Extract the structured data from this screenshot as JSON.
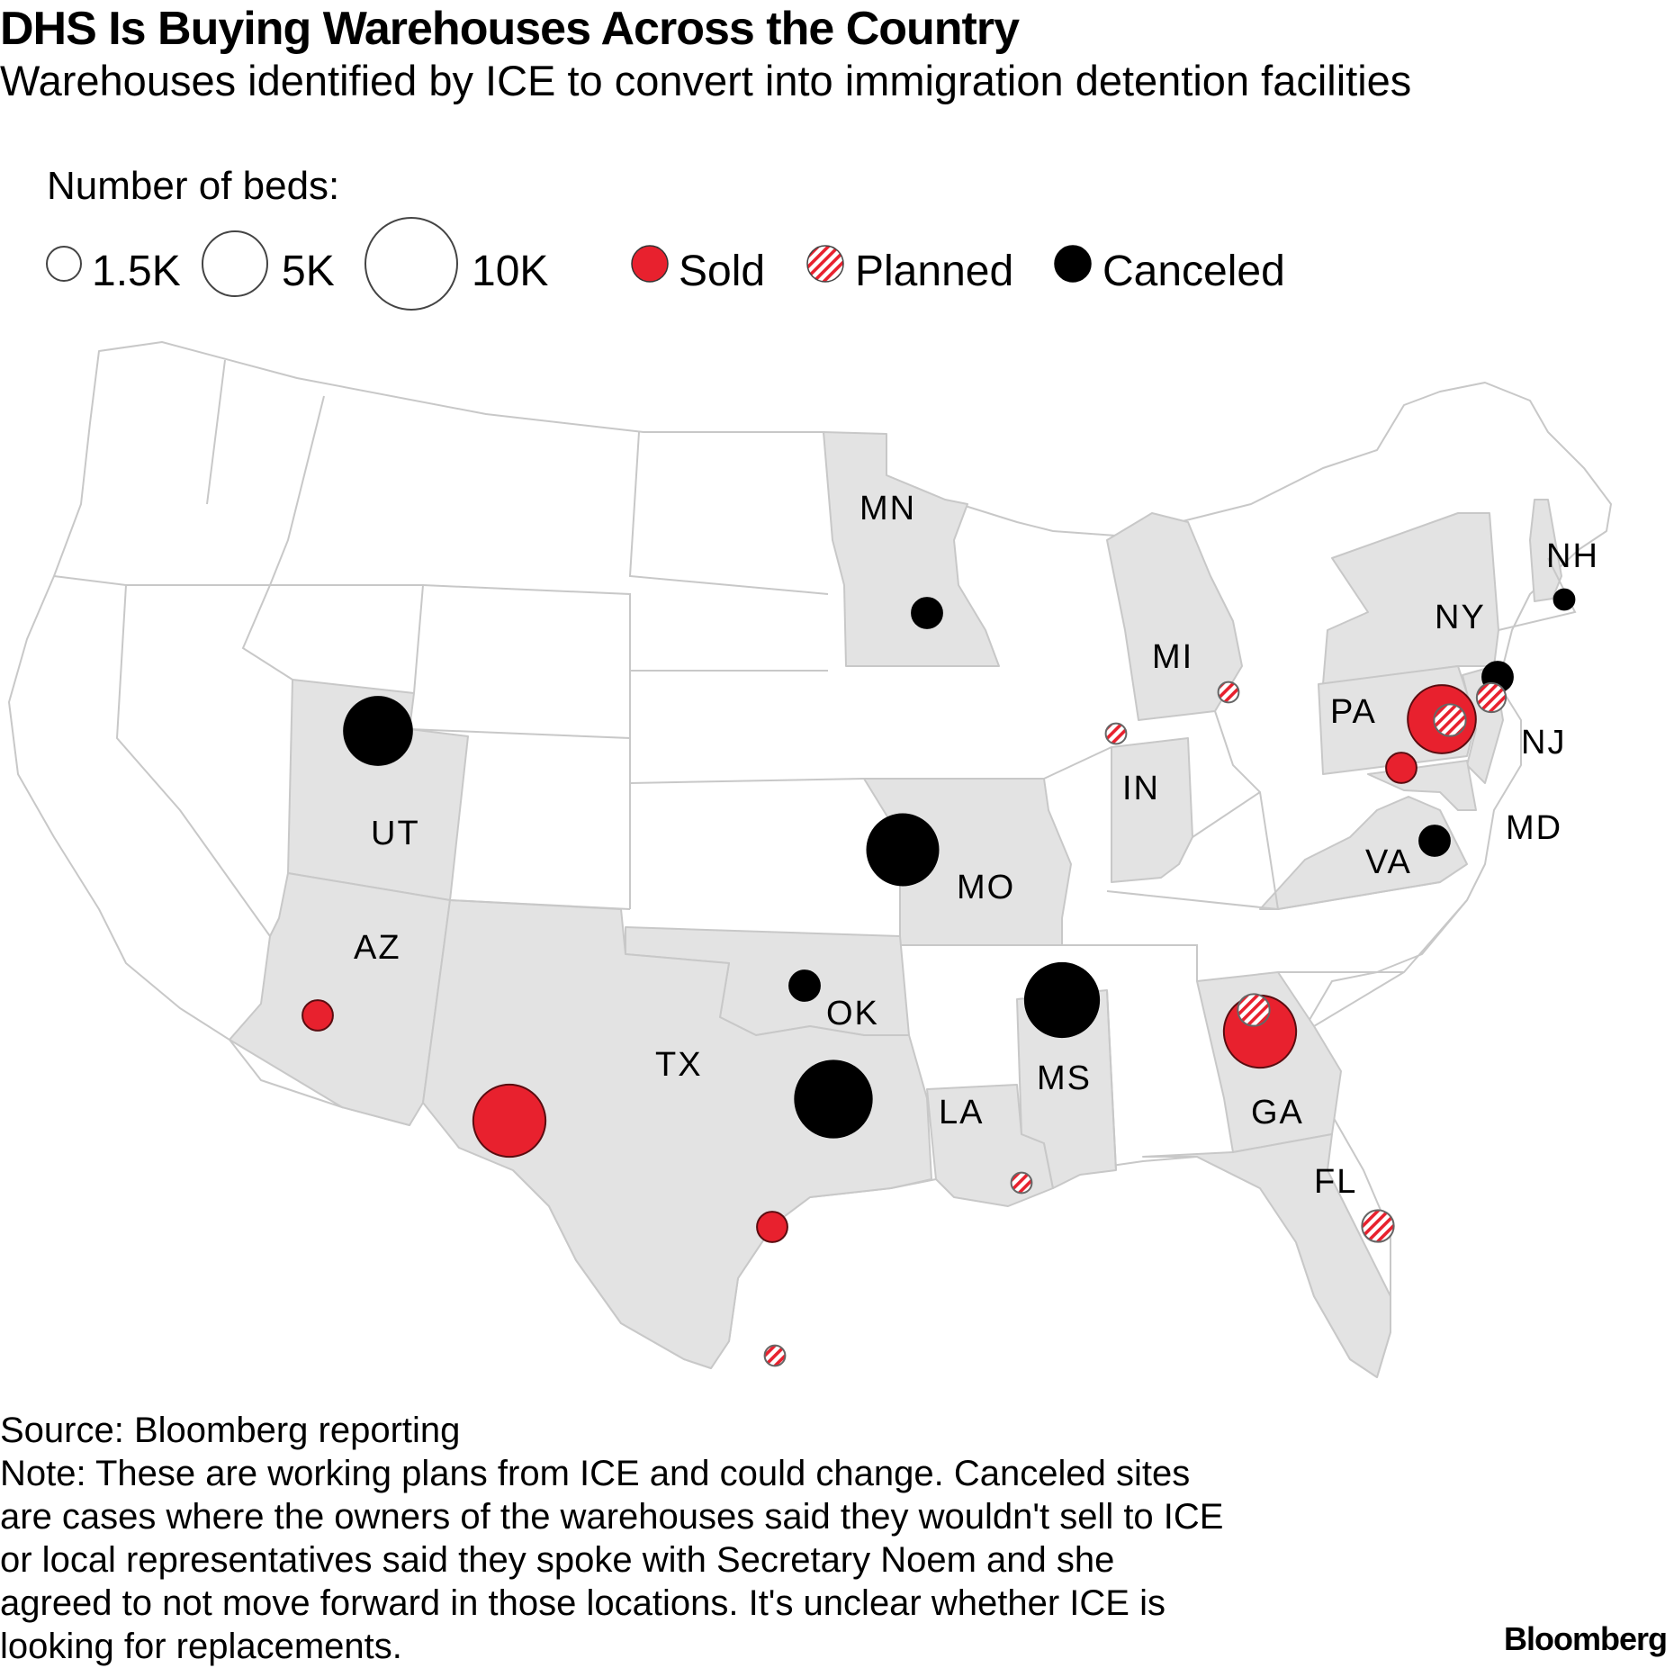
{
  "header": {
    "title": "DHS Is Buying Warehouses Across the Country",
    "subtitle": "Warehouses identified by ICE to convert into immigration detention facilities"
  },
  "legend": {
    "size_title": "Number of beds:",
    "sizes": [
      {
        "label": "1.5K",
        "beds": 1500
      },
      {
        "label": "5K",
        "beds": 5000
      },
      {
        "label": "10K",
        "beds": 10000
      }
    ],
    "statuses": [
      {
        "label": "Sold",
        "key": "sold"
      },
      {
        "label": "Planned",
        "key": "planned"
      },
      {
        "label": "Canceled",
        "key": "canceled"
      }
    ]
  },
  "colors": {
    "sold": "#e8212e",
    "planned_stripe": "#e8212e",
    "canceled": "#000000",
    "highlight_state": "#e3e3e3",
    "state_border": "#c8c8c8"
  },
  "state_labels": [
    "MN",
    "NH",
    "NY",
    "MI",
    "PA",
    "NJ",
    "IN",
    "UT",
    "MD",
    "VA",
    "MO",
    "AZ",
    "OK",
    "TX",
    "MS",
    "LA",
    "GA",
    "FL"
  ],
  "sites": [
    {
      "state": "UT",
      "status": "canceled",
      "beds": 5500
    },
    {
      "state": "MN",
      "status": "canceled",
      "beds": 1100
    },
    {
      "state": "MO",
      "status": "canceled",
      "beds": 6000
    },
    {
      "state": "OK",
      "status": "canceled",
      "beds": 1100
    },
    {
      "state": "TX",
      "status": "canceled",
      "beds": 7000
    },
    {
      "state": "MS",
      "status": "canceled",
      "beds": 6500
    },
    {
      "state": "NH",
      "status": "canceled",
      "beds": 500
    },
    {
      "state": "NY",
      "status": "canceled",
      "beds": 1100
    },
    {
      "state": "VA",
      "status": "canceled",
      "beds": 1100
    },
    {
      "state": "AZ",
      "status": "sold",
      "beds": 1100
    },
    {
      "state": "TX",
      "status": "sold",
      "beds": 6200
    },
    {
      "state": "TX",
      "status": "sold",
      "beds": 1100
    },
    {
      "state": "GA",
      "status": "sold",
      "beds": 6200
    },
    {
      "state": "PA",
      "status": "sold",
      "beds": 5500
    },
    {
      "state": "MD",
      "status": "sold",
      "beds": 1100
    },
    {
      "state": "GA",
      "status": "planned",
      "beds": 1200
    },
    {
      "state": "NJ",
      "status": "planned",
      "beds": 1000
    },
    {
      "state": "PA",
      "status": "planned",
      "beds": 1200
    },
    {
      "state": "FL",
      "status": "planned",
      "beds": 1200
    },
    {
      "state": "MI",
      "status": "planned",
      "beds": 500
    },
    {
      "state": "IN",
      "status": "planned",
      "beds": 500
    },
    {
      "state": "LA",
      "status": "planned",
      "beds": 500
    },
    {
      "state": "TX",
      "status": "planned",
      "beds": 500
    }
  ],
  "footer": {
    "source": "Source: Bloomberg reporting",
    "note_lines": [
      "Note: These are working plans from ICE and could change. Canceled sites",
      "are cases where the owners of the warehouses said they wouldn't sell to ICE",
      "or local representatives said they spoke with Secretary Noem and she",
      "agreed to not move forward in those locations. It's unclear whether ICE is",
      "looking for replacements."
    ],
    "brand": "Bloomberg"
  }
}
